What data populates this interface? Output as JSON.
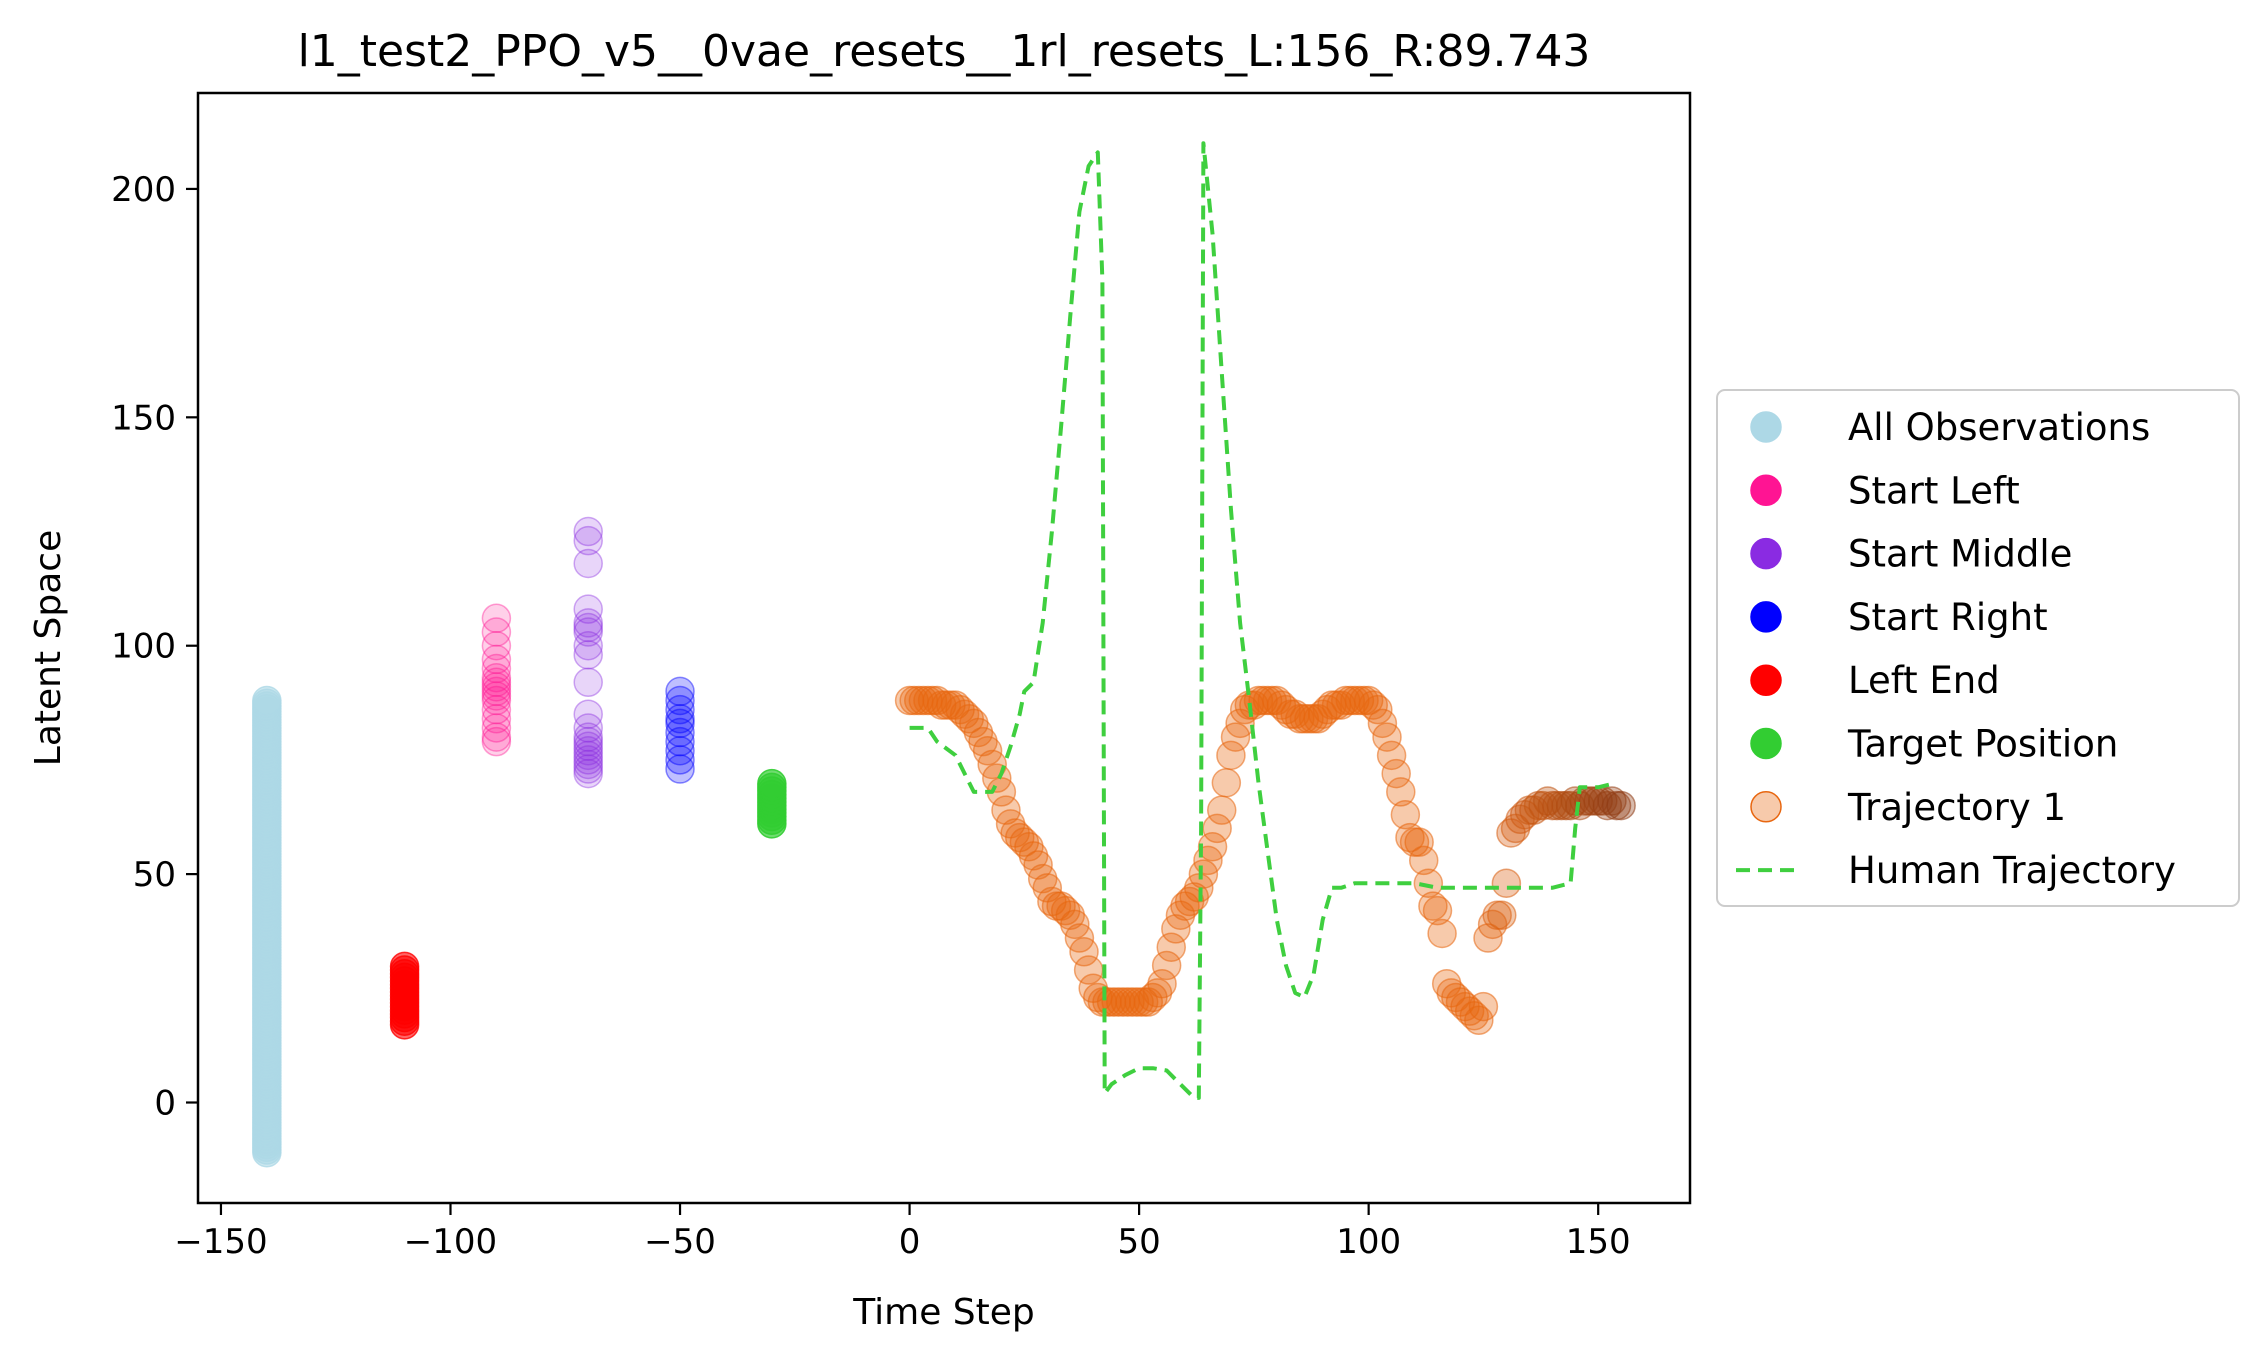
{
  "chart_data": {
    "type": "scatter",
    "title": "l1_test2_PPO_v5__0vae_resets__1rl_resets_L:156_R:89.743",
    "xlabel": "Time Step",
    "ylabel": "Latent Space",
    "xlim": [
      -155,
      170
    ],
    "ylim": [
      -22,
      221
    ],
    "xticks": [
      {
        "value": -150,
        "label": "−150"
      },
      {
        "value": -100,
        "label": "−100"
      },
      {
        "value": -50,
        "label": "−50"
      },
      {
        "value": 0,
        "label": "0"
      },
      {
        "value": 50,
        "label": "50"
      },
      {
        "value": 100,
        "label": "100"
      },
      {
        "value": 150,
        "label": "150"
      }
    ],
    "yticks": [
      {
        "value": 0,
        "label": "0"
      },
      {
        "value": 50,
        "label": "50"
      },
      {
        "value": 100,
        "label": "100"
      },
      {
        "value": 150,
        "label": "150"
      },
      {
        "value": 200,
        "label": "200"
      }
    ],
    "grid": false,
    "legend_position": "outside-right",
    "series": [
      {
        "name": "All Observations",
        "kind": "scatter",
        "color": "#add8e6",
        "x_constant": -140,
        "y_range": [
          -11,
          88
        ],
        "y_step": 0.6,
        "alpha": 0.6
      },
      {
        "name": "Start Left",
        "kind": "scatter",
        "color": "#ff1493",
        "x_constant": -90,
        "y_values": [
          79,
          80,
          82,
          84,
          86,
          88,
          89,
          90,
          91,
          92,
          93,
          95,
          97,
          100,
          103,
          106
        ],
        "alpha": 0.2
      },
      {
        "name": "Start Middle",
        "kind": "scatter",
        "color": "#8a2be2",
        "x_constant": -70,
        "y_values": [
          72,
          73,
          74,
          75,
          76,
          77,
          78,
          79,
          80,
          82,
          85,
          92,
          98,
          100,
          103,
          104,
          105,
          108,
          118,
          123,
          125
        ],
        "alpha": 0.2
      },
      {
        "name": "Start Right",
        "kind": "scatter",
        "color": "#0000ff",
        "x_constant": -50,
        "y_values": [
          73,
          75,
          77,
          79,
          81,
          83,
          84,
          86,
          88,
          90
        ],
        "alpha": 0.25
      },
      {
        "name": "Left End",
        "kind": "scatter",
        "color": "#ff0000",
        "x_constant": -110,
        "y_range": [
          17,
          30
        ],
        "y_step": 0.8,
        "alpha": 0.6
      },
      {
        "name": "Target Position",
        "kind": "scatter",
        "color": "#32cd32",
        "x_constant": -30,
        "y_range": [
          61,
          70
        ],
        "y_step": 0.8,
        "alpha": 0.7
      },
      {
        "name": "Trajectory 1",
        "kind": "scatter",
        "color": "#e8660f",
        "color_end": "#8b3a14",
        "alpha": 0.35,
        "x": [
          0,
          1,
          2,
          3,
          4,
          5,
          6,
          7,
          8,
          9,
          10,
          11,
          12,
          13,
          14,
          15,
          16,
          17,
          18,
          19,
          20,
          21,
          22,
          23,
          24,
          25,
          26,
          27,
          28,
          29,
          30,
          31,
          32,
          33,
          34,
          35,
          36,
          37,
          38,
          39,
          40,
          41,
          42,
          43,
          44,
          45,
          46,
          47,
          48,
          49,
          50,
          51,
          52,
          53,
          54,
          55,
          56,
          57,
          58,
          59,
          60,
          61,
          62,
          63,
          64,
          65,
          66,
          67,
          68,
          69,
          70,
          71,
          72,
          73,
          74,
          75,
          76,
          77,
          78,
          79,
          80,
          81,
          82,
          83,
          84,
          85,
          86,
          87,
          88,
          89,
          90,
          91,
          92,
          93,
          94,
          95,
          96,
          97,
          98,
          99,
          100,
          101,
          102,
          103,
          104,
          105,
          106,
          107,
          108,
          109,
          110,
          111,
          112,
          113,
          114,
          115,
          116,
          117,
          118,
          119,
          120,
          121,
          122,
          123,
          124,
          125,
          126,
          127,
          128,
          129,
          130,
          131,
          132,
          133,
          134,
          135,
          136,
          137,
          138,
          139,
          140,
          141,
          142,
          143,
          144,
          145,
          146,
          147,
          148,
          149,
          150,
          151,
          152,
          153,
          154,
          155
        ],
        "y": [
          88,
          88,
          88,
          88,
          88,
          88,
          88,
          87,
          87,
          87,
          87,
          86,
          85,
          84,
          83,
          81,
          79,
          77,
          74,
          71,
          68,
          64,
          61,
          59,
          58,
          57,
          56,
          54,
          52,
          49,
          47,
          44,
          43,
          43,
          42,
          41,
          39,
          36,
          33,
          29,
          25,
          23,
          22,
          22,
          22,
          22,
          22,
          22,
          22,
          22,
          22,
          22,
          22,
          23,
          24,
          26,
          30,
          34,
          38,
          41,
          43,
          44,
          45,
          47,
          50,
          53,
          56,
          60,
          64,
          70,
          76,
          80,
          83,
          86,
          87,
          87,
          88,
          88,
          88,
          88,
          88,
          87,
          86,
          85,
          85,
          84,
          84,
          84,
          84,
          84,
          85,
          86,
          87,
          87,
          87,
          88,
          88,
          88,
          88,
          88,
          88,
          87,
          86,
          83,
          80,
          76,
          72,
          68,
          63,
          58,
          57,
          57,
          53,
          48,
          43,
          42,
          37,
          26,
          24,
          23,
          22,
          21,
          20,
          19,
          18,
          21,
          36,
          39,
          41,
          41,
          48,
          59,
          60,
          62,
          63,
          64,
          64,
          65,
          65,
          66,
          65,
          65,
          65,
          65,
          65,
          66,
          65,
          66,
          66,
          66,
          66,
          66,
          65,
          66,
          65,
          65
        ]
      },
      {
        "name": "Human Trajectory",
        "kind": "line",
        "color": "#3fcf3f",
        "dash": "14,8",
        "x": [
          0,
          4,
          6,
          10,
          14,
          18,
          20,
          22,
          24,
          25,
          27,
          29,
          31,
          33,
          35,
          37,
          39,
          41,
          42,
          42.5,
          44,
          47,
          50,
          53,
          56,
          58,
          60,
          62,
          63,
          63.5,
          64,
          66,
          68,
          70,
          72,
          74,
          76,
          78,
          80,
          82,
          84,
          86,
          88,
          90,
          92,
          94,
          97,
          100,
          103,
          106,
          110,
          115,
          120,
          125,
          130,
          135,
          140,
          144,
          145,
          146,
          150,
          154
        ],
        "y": [
          82,
          82,
          79,
          76,
          68,
          68,
          72,
          78,
          85,
          90,
          92,
          105,
          125,
          148,
          172,
          195,
          205,
          208,
          180,
          2,
          4,
          6,
          7.5,
          7.5,
          7,
          5,
          3,
          1,
          1,
          60,
          210,
          190,
          160,
          130,
          105,
          88,
          70,
          55,
          40,
          30,
          24,
          23,
          28,
          40,
          47,
          47,
          48,
          48,
          48,
          48,
          48,
          47,
          47,
          47,
          47,
          47,
          47,
          48,
          60,
          69,
          69,
          70
        ]
      }
    ]
  }
}
